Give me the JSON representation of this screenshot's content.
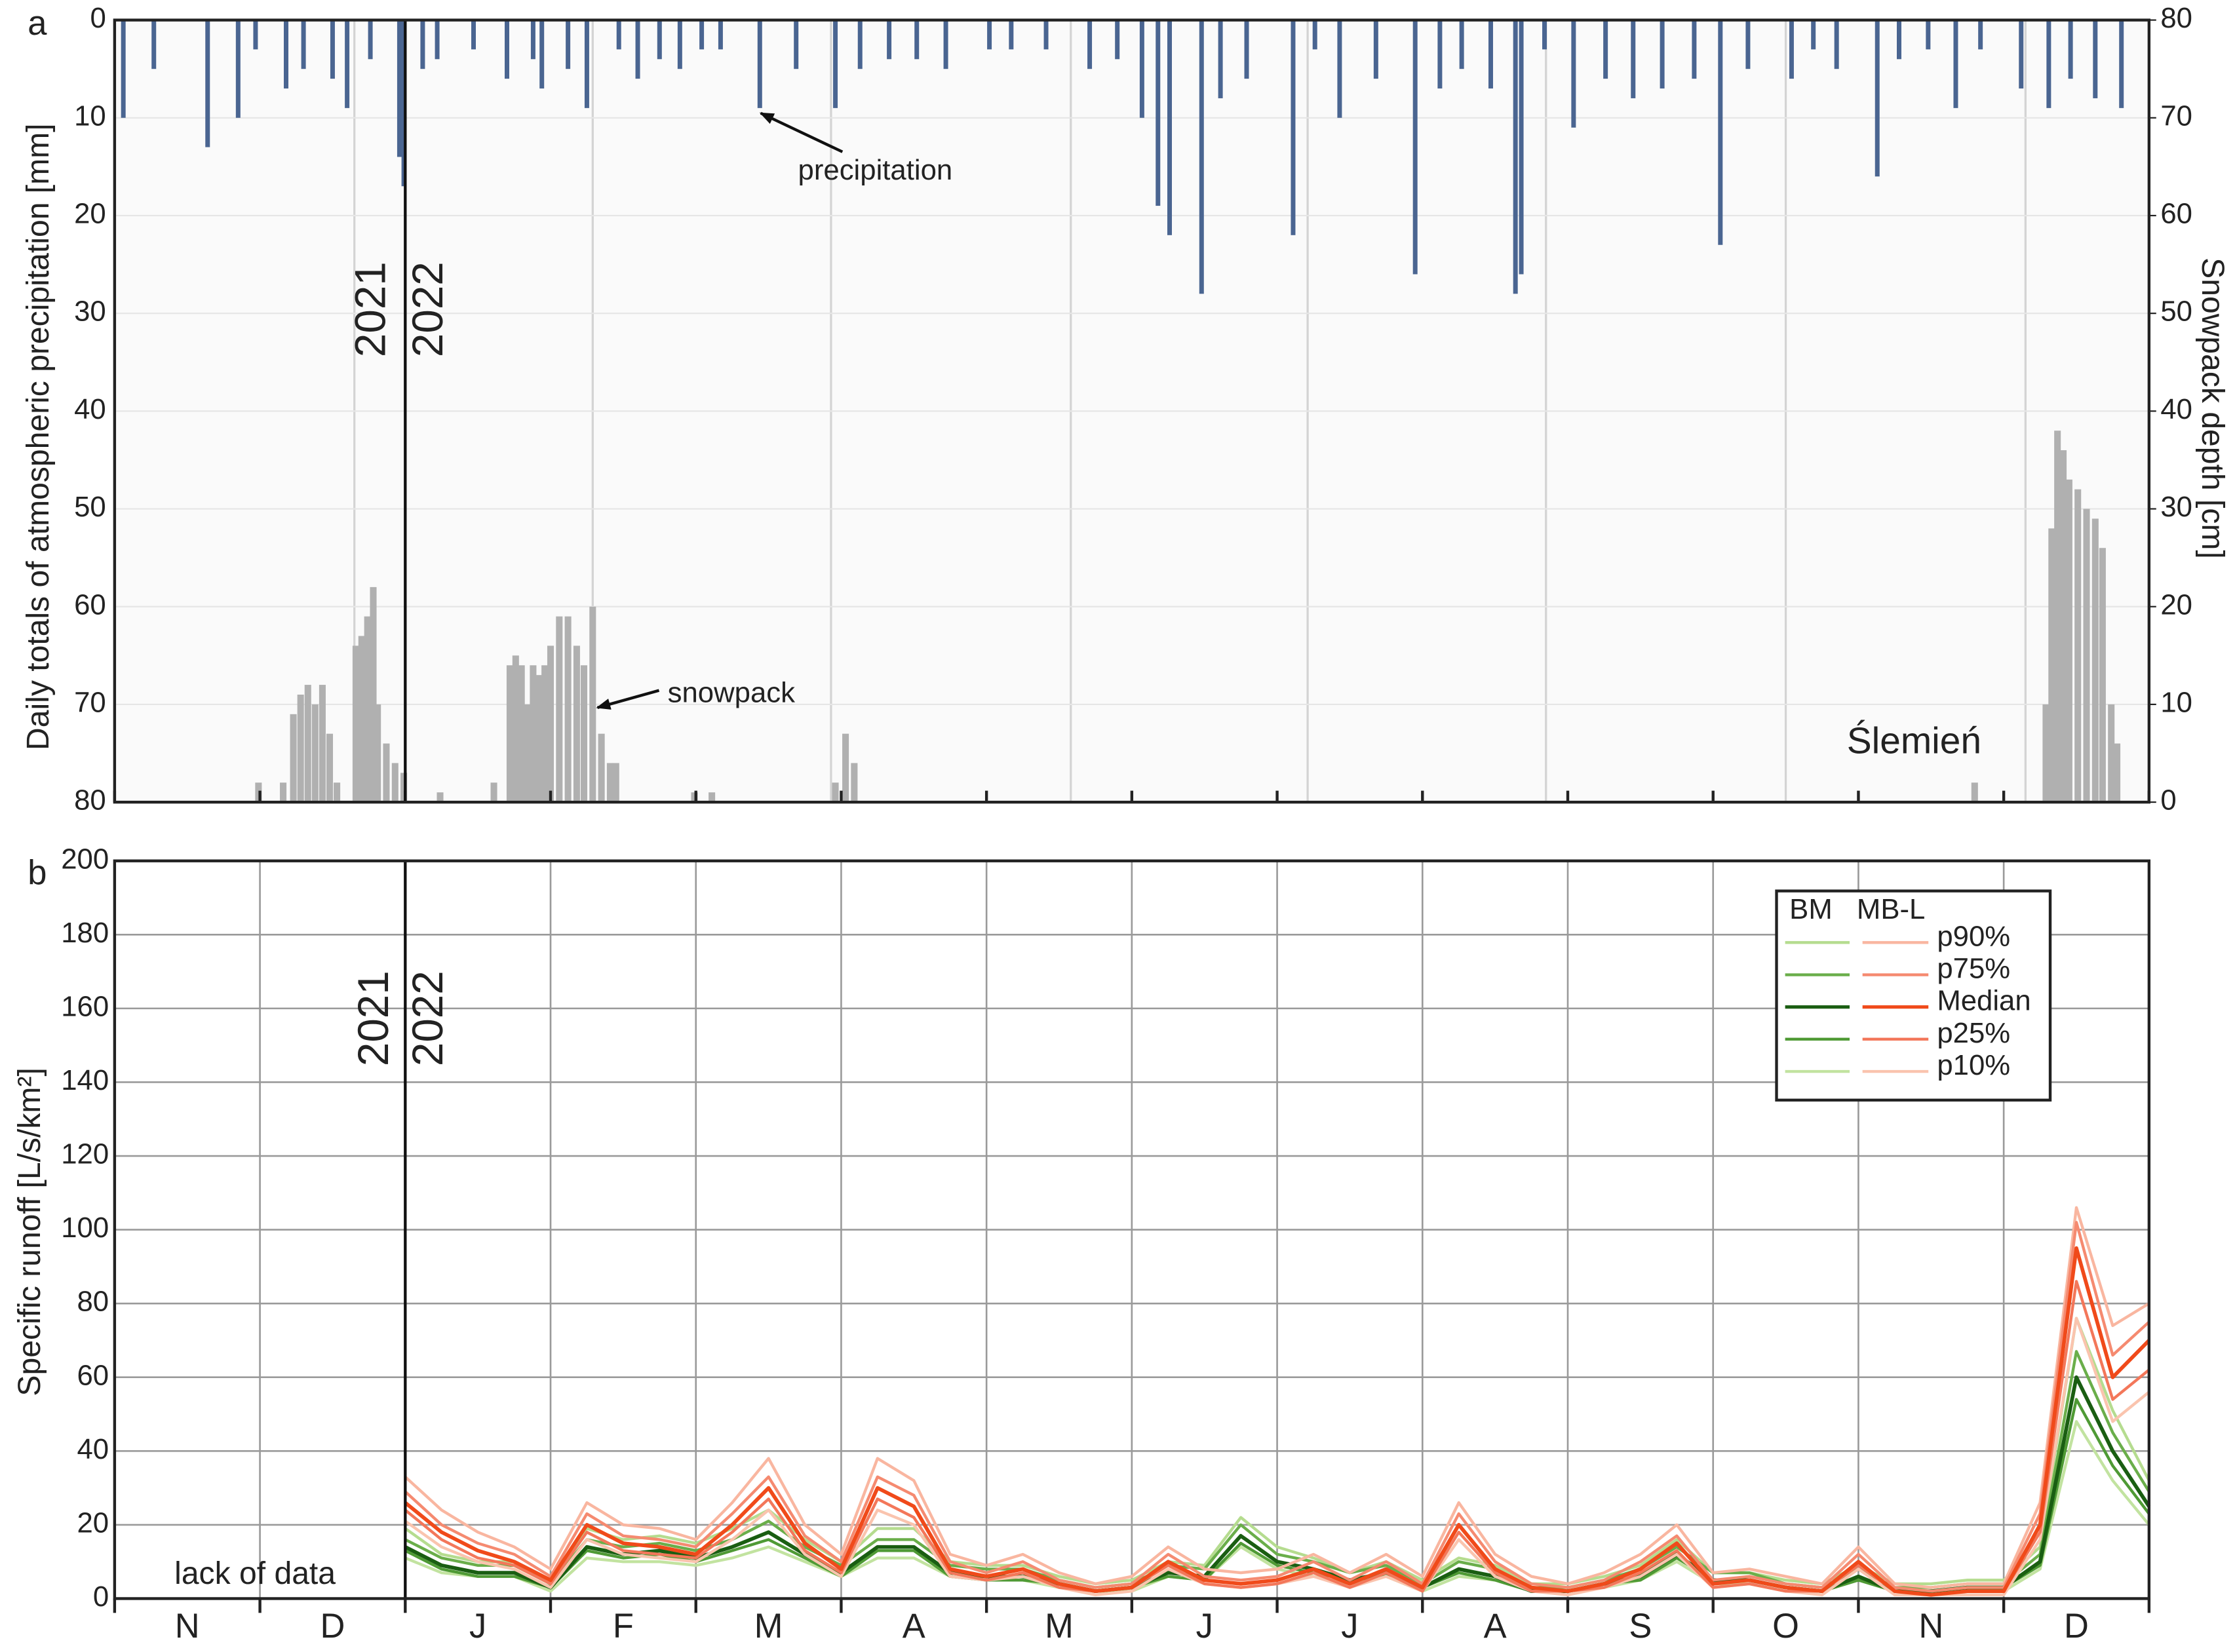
{
  "chart_data": [
    {
      "type": "bar",
      "panel": "a",
      "y_label": "Daily totals of atmospheric precipitation [mm]",
      "y2_label": "Snowpack depth [cm]",
      "site": "Ślemień",
      "year_line": 2,
      "year_labels": [
        "2021",
        "2022"
      ],
      "xlim": [
        0,
        14
      ],
      "xticks": [
        0,
        1,
        2,
        3,
        4,
        5,
        6,
        7,
        8,
        9,
        10,
        11,
        12,
        13,
        14
      ],
      "xgrid": [
        1.65,
        3.29,
        4.93,
        6.58,
        8.21,
        9.85,
        11.5,
        13.15
      ],
      "ylim": [
        80,
        0
      ],
      "yticks": [
        0,
        10,
        20,
        30,
        40,
        50,
        60,
        70,
        80
      ],
      "y2lim": [
        0,
        80
      ],
      "y2ticks": [
        0,
        10,
        20,
        30,
        40,
        50,
        60,
        70,
        80
      ],
      "series": [
        {
          "name": "precipitation",
          "color": "#4a6591",
          "x": [
            0.06,
            0.27,
            0.64,
            0.85,
            0.97,
            1.18,
            1.3,
            1.5,
            1.6,
            1.76,
            1.96,
            1.99,
            2.12,
            2.22,
            2.47,
            2.7,
            2.88,
            2.94,
            3.12,
            3.25,
            3.47,
            3.6,
            3.75,
            3.89,
            4.04,
            4.17,
            4.44,
            4.69,
            4.96,
            5.13,
            5.33,
            5.52,
            5.72,
            6.02,
            6.17,
            6.41,
            6.71,
            6.9,
            7.07,
            7.18,
            7.26,
            7.48,
            7.61,
            7.79,
            8.11,
            8.26,
            8.43,
            8.68,
            8.95,
            9.12,
            9.27,
            9.47,
            9.64,
            9.68,
            9.84,
            10.04,
            10.26,
            10.45,
            10.65,
            10.87,
            11.05,
            11.24,
            11.54,
            11.69,
            11.85,
            12.13,
            12.28,
            12.48,
            12.67,
            12.84,
            13.12,
            13.31,
            13.46,
            13.63,
            13.81
          ],
          "values": [
            10,
            5,
            13,
            10,
            3,
            7,
            5,
            6,
            9,
            4,
            14,
            17,
            5,
            4,
            3,
            6,
            4,
            7,
            5,
            9,
            3,
            6,
            4,
            5,
            3,
            3,
            9,
            5,
            9,
            5,
            4,
            4,
            5,
            3,
            3,
            3,
            5,
            4,
            10,
            19,
            22,
            28,
            8,
            6,
            22,
            3,
            10,
            6,
            26,
            7,
            5,
            7,
            28,
            26,
            3,
            11,
            6,
            8,
            7,
            6,
            23,
            5,
            6,
            3,
            5,
            16,
            4,
            3,
            9,
            3,
            7,
            9,
            6,
            8,
            9
          ]
        },
        {
          "name": "snowpack",
          "color": "#b0b0b0",
          "axis": "y2",
          "x": [
            0.99,
            1.16,
            1.23,
            1.28,
            1.33,
            1.38,
            1.43,
            1.48,
            1.53,
            1.66,
            1.7,
            1.74,
            1.78,
            1.81,
            1.87,
            1.93,
            1.99,
            2.24,
            2.61,
            2.72,
            2.76,
            2.8,
            2.84,
            2.88,
            2.92,
            2.96,
            3.0,
            3.06,
            3.12,
            3.18,
            3.23,
            3.29,
            3.35,
            3.41,
            3.45,
            3.99,
            4.11,
            4.96,
            5.03,
            5.09,
            12.8,
            13.29,
            13.33,
            13.37,
            13.41,
            13.45,
            13.51,
            13.57,
            13.63,
            13.68,
            13.74,
            13.78
          ],
          "values": [
            2,
            2,
            9,
            11,
            12,
            10,
            12,
            7,
            2,
            16,
            17,
            19,
            22,
            10,
            6,
            4,
            3,
            1,
            2,
            14,
            15,
            14,
            10,
            14,
            13,
            14,
            16,
            19,
            19,
            16,
            14,
            20,
            7,
            4,
            4,
            1,
            1,
            2,
            7,
            4,
            2,
            10,
            28,
            38,
            36,
            33,
            32,
            30,
            29,
            26,
            10,
            6
          ]
        }
      ]
    },
    {
      "type": "line",
      "panel": "b",
      "y_label": "Specific runoff [L/s/km²]",
      "note": "lack of data",
      "year_line": 2,
      "year_labels": [
        "2021",
        "2022"
      ],
      "months": [
        "N",
        "D",
        "J",
        "F",
        "M",
        "A",
        "M",
        "J",
        "J",
        "A",
        "S",
        "O",
        "N",
        "D"
      ],
      "xlim": [
        0,
        14
      ],
      "xticks": [
        0,
        1,
        2,
        3,
        4,
        5,
        6,
        7,
        8,
        9,
        10,
        11,
        12,
        13,
        14
      ],
      "ylim": [
        0,
        200
      ],
      "yticks": [
        0,
        20,
        40,
        60,
        80,
        100,
        120,
        140,
        160,
        180,
        200
      ],
      "grid": true,
      "x": [
        2,
        2.25,
        2.5,
        2.75,
        3,
        3.25,
        3.5,
        3.75,
        4,
        4.25,
        4.5,
        4.75,
        5,
        5.25,
        5.5,
        5.75,
        6,
        6.25,
        6.5,
        6.75,
        7,
        7.25,
        7.5,
        7.75,
        8,
        8.25,
        8.5,
        8.75,
        9,
        9.25,
        9.5,
        9.75,
        10,
        10.25,
        10.5,
        10.75,
        11,
        11.25,
        11.5,
        11.75,
        12,
        12.25,
        12.5,
        12.75,
        13,
        13.25,
        13.5,
        13.75,
        14
      ],
      "series_names": [
        "p90%",
        "p75%",
        "Median",
        "p25%",
        "p10%"
      ],
      "groups": [
        {
          "name": "BM",
          "colors": [
            "#b5dc8f",
            "#6aae4a",
            "#1a5e12",
            "#4f9a35",
            "#c2e3a0"
          ],
          "values": [
            [
              19,
              12,
              10,
              10,
              5,
              19,
              16,
              17,
              15,
              19,
              24,
              16,
              10,
              19,
              19,
              10,
              9,
              9,
              6,
              4,
              5,
              10,
              9,
              22,
              14,
              11,
              7,
              10,
              5,
              11,
              9,
              4,
              4,
              6,
              9,
              16,
              7,
              7,
              5,
              4,
              9,
              4,
              4,
              5,
              5,
              14,
              76,
              51,
              32
            ],
            [
              16,
              11,
              9,
              9,
              4,
              16,
              14,
              15,
              13,
              16,
              21,
              14,
              9,
              16,
              16,
              9,
              8,
              8,
              5,
              3,
              4,
              9,
              8,
              20,
              12,
              10,
              7,
              9,
              4,
              10,
              8,
              3,
              3,
              5,
              8,
              14,
              7,
              7,
              4,
              3,
              8,
              3,
              3,
              4,
              4,
              12,
              67,
              45,
              29
            ],
            [
              14,
              9,
              7,
              7,
              3,
              14,
              12,
              13,
              11,
              14,
              18,
              12,
              7,
              14,
              14,
              7,
              6,
              6,
              4,
              2,
              3,
              7,
              6,
              17,
              10,
              8,
              5,
              7,
              3,
              8,
              6,
              2,
              2,
              4,
              6,
              12,
              5,
              5,
              3,
              2,
              6,
              2,
              2,
              3,
              3,
              10,
              60,
              40,
              25
            ],
            [
              13,
              8,
              6,
              6,
              3,
              13,
              11,
              12,
              10,
              13,
              16,
              11,
              6,
              13,
              13,
              6,
              5,
              5,
              4,
              2,
              3,
              6,
              5,
              15,
              9,
              7,
              5,
              6,
              3,
              7,
              5,
              2,
              2,
              4,
              5,
              11,
              5,
              5,
              3,
              2,
              5,
              2,
              2,
              3,
              3,
              9,
              54,
              36,
              23
            ],
            [
              11,
              7,
              6,
              6,
              2,
              11,
              10,
              10,
              9,
              11,
              14,
              10,
              6,
              11,
              11,
              6,
              5,
              5,
              3,
              2,
              2,
              6,
              5,
              14,
              8,
              6,
              4,
              6,
              2,
              6,
              5,
              2,
              2,
              3,
              5,
              10,
              4,
              4,
              2,
              2,
              5,
              2,
              2,
              2,
              2,
              8,
              48,
              32,
              20
            ]
          ]
        },
        {
          "name": "MB-L",
          "colors": [
            "#f9b6a0",
            "#f58a70",
            "#f04a1a",
            "#f3775a",
            "#fac4ae"
          ],
          "values": [
            [
              33,
              24,
              18,
              14,
              8,
              26,
              20,
              19,
              16,
              26,
              38,
              20,
              12,
              38,
              32,
              12,
              9,
              12,
              7,
              4,
              6,
              14,
              8,
              7,
              8,
              12,
              7,
              12,
              6,
              26,
              12,
              6,
              4,
              7,
              12,
              20,
              7,
              8,
              6,
              4,
              14,
              4,
              3,
              4,
              4,
              26,
              106,
              74,
              80
            ],
            [
              29,
              20,
              15,
              12,
              6,
              23,
              17,
              16,
              14,
              23,
              33,
              17,
              10,
              33,
              28,
              10,
              7,
              10,
              5,
              3,
              4,
              12,
              6,
              5,
              6,
              10,
              5,
              10,
              4,
              23,
              10,
              4,
              3,
              5,
              10,
              17,
              5,
              6,
              4,
              3,
              12,
              3,
              2,
              3,
              3,
              23,
              102,
              66,
              75
            ],
            [
              26,
              18,
              13,
              10,
              5,
              20,
              15,
              14,
              12,
              20,
              30,
              15,
              8,
              30,
              25,
              8,
              6,
              8,
              4,
              2,
              3,
              10,
              5,
              4,
              5,
              8,
              4,
              8,
              3,
              20,
              8,
              3,
              2,
              4,
              8,
              15,
              4,
              5,
              3,
              2,
              10,
              2,
              1,
              2,
              2,
              20,
              95,
              60,
              70
            ],
            [
              24,
              16,
              11,
              9,
              4,
              18,
              13,
              12,
              11,
              18,
              27,
              13,
              7,
              27,
              22,
              7,
              5,
              7,
              3,
              2,
              3,
              9,
              4,
              3,
              4,
              7,
              3,
              7,
              2,
              18,
              7,
              2,
              2,
              3,
              7,
              13,
              3,
              4,
              2,
              2,
              9,
              2,
              1,
              2,
              2,
              18,
              86,
              54,
              62
            ],
            [
              21,
              14,
              10,
              8,
              3,
              16,
              12,
              11,
              10,
              16,
              24,
              12,
              6,
              24,
              20,
              6,
              5,
              6,
              3,
              1,
              2,
              8,
              4,
              3,
              4,
              6,
              3,
              6,
              2,
              16,
              6,
              2,
              1,
              3,
              6,
              12,
              3,
              4,
              2,
              1,
              8,
              1,
              1,
              1,
              1,
              16,
              76,
              48,
              56
            ]
          ]
        }
      ]
    }
  ]
}
